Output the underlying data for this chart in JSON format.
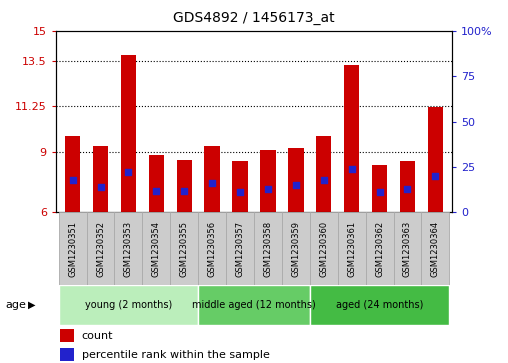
{
  "title": "GDS4892 / 1456173_at",
  "samples": [
    "GSM1230351",
    "GSM1230352",
    "GSM1230353",
    "GSM1230354",
    "GSM1230355",
    "GSM1230356",
    "GSM1230357",
    "GSM1230358",
    "GSM1230359",
    "GSM1230360",
    "GSM1230361",
    "GSM1230362",
    "GSM1230363",
    "GSM1230364"
  ],
  "count_values": [
    9.8,
    9.3,
    13.8,
    8.85,
    8.6,
    9.3,
    8.55,
    9.1,
    9.2,
    9.8,
    13.3,
    8.35,
    8.55,
    11.2
  ],
  "percentile_values": [
    18,
    14,
    22,
    12,
    12,
    16,
    11,
    13,
    15,
    18,
    24,
    11,
    13,
    20
  ],
  "ymin": 6,
  "ymax": 15,
  "yticks_left": [
    6,
    9,
    11.25,
    13.5,
    15
  ],
  "yticks_right": [
    0,
    25,
    50,
    75,
    100
  ],
  "bar_color": "#cc0000",
  "dot_color": "#2222cc",
  "bar_width": 0.55,
  "groups": [
    {
      "label": "young (2 months)",
      "start": 0,
      "end": 5
    },
    {
      "label": "middle aged (12 months)",
      "start": 5,
      "end": 9
    },
    {
      "label": "aged (24 months)",
      "start": 9,
      "end": 14
    }
  ],
  "group_colors": [
    "#bbeebb",
    "#66cc66",
    "#44bb44"
  ],
  "legend_count_label": "count",
  "legend_pct_label": "percentile rank within the sample",
  "age_label": "age",
  "background_color": "#ffffff",
  "tick_label_color_left": "#cc0000",
  "tick_label_color_right": "#2222cc",
  "label_cell_color": "#cccccc",
  "label_cell_border": "#aaaaaa"
}
